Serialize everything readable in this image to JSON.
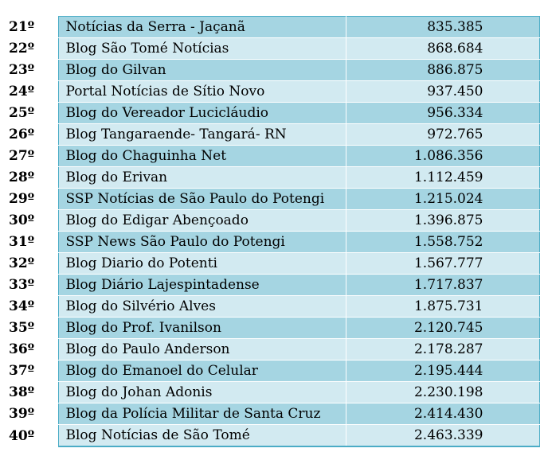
{
  "rows": [
    {
      "rank": "21º",
      "name": "Notícias da Serra - Jaçanã",
      "value": "835.385"
    },
    {
      "rank": "22º",
      "name": "Blog São Tomé Notícias",
      "value": "868.684"
    },
    {
      "rank": "23º",
      "name": "Blog do Gilvan",
      "value": "886.875"
    },
    {
      "rank": "24º",
      "name": "Portal Notícias de Sítio Novo",
      "value": "937.450"
    },
    {
      "rank": "25º",
      "name": "Blog do Vereador Lucicláudio",
      "value": "956.334"
    },
    {
      "rank": "26º",
      "name": "Blog Tangaraende- Tangará- RN",
      "value": "972.765"
    },
    {
      "rank": "27º",
      "name": "Blog do Chaguinha Net",
      "value": "1.086.356"
    },
    {
      "rank": "28º",
      "name": "Blog do Erivan",
      "value": "1.112.459"
    },
    {
      "rank": "29º",
      "name": "SSP Notícias de São Paulo do Potengi",
      "value": "1.215.024"
    },
    {
      "rank": "30º",
      "name": "Blog do Edigar Abençoado",
      "value": "1.396.875"
    },
    {
      "rank": "31º",
      "name": "SSP News São Paulo do Potengi",
      "value": "1.558.752"
    },
    {
      "rank": "32º",
      "name": "Blog Diario do Potenti",
      "value": "1.567.777"
    },
    {
      "rank": "33º",
      "name": "Blog Diário Lajespintadense",
      "value": "1.717.837"
    },
    {
      "rank": "34º",
      "name": "Blog do Silvério Alves",
      "value": "1.875.731"
    },
    {
      "rank": "35º",
      "name": "Blog do Prof. Ivanilson",
      "value": "2.120.745"
    },
    {
      "rank": "36º",
      "name": "Blog do Paulo Anderson",
      "value": "2.178.287"
    },
    {
      "rank": "37º",
      "name": "Blog do Emanoel do Celular",
      "value": "2.195.444"
    },
    {
      "rank": "38º",
      "name": "Blog do Johan Adonis",
      "value": "2.230.198"
    },
    {
      "rank": "39º",
      "name": "Blog da Polícia Militar de Santa Cruz",
      "value": "2.414.430"
    },
    {
      "rank": "40º",
      "name": "Blog Notícias de São Tomé",
      "value": "2.463.339"
    }
  ],
  "colors": {
    "row_dark": "#a5d5e2",
    "row_light": "#d2eaf1",
    "border_accent": "#4bacc6"
  }
}
